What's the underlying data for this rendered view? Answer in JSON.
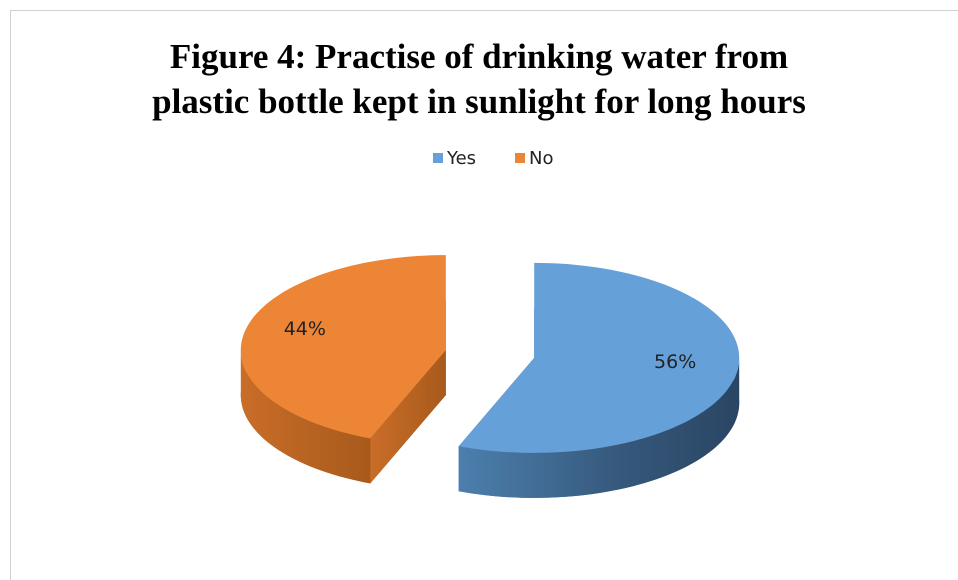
{
  "chart_data": {
    "type": "pie",
    "title": "Figure 4: Practise of drinking water from plastic bottle kept in sunlight for long hours",
    "categories": [
      "Yes",
      "No"
    ],
    "values": [
      56,
      44
    ],
    "value_labels": [
      "56%",
      "44%"
    ],
    "colors": [
      "#65a0d8",
      "#ed8537"
    ],
    "legend": "top"
  }
}
